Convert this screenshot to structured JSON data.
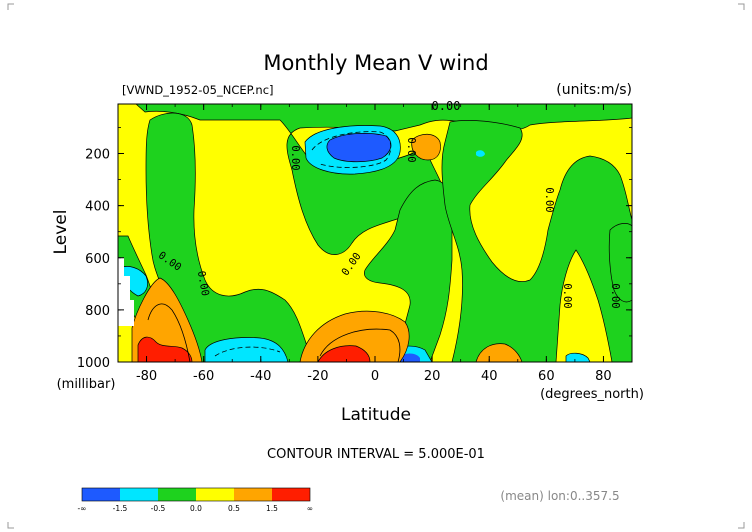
{
  "chart_data": {
    "type": "heatmap",
    "title": "Monthly Mean V wind",
    "source_label": "[VWND_1952-05_NCEP.nc]",
    "units_label": "(units:m/s)",
    "xlabel": "Latitude",
    "x_unit_label": "(degrees_north)",
    "ylabel": "Level",
    "y_unit_label": "(millibar)",
    "xlim": [
      -90,
      90
    ],
    "ylim": [
      1000,
      10
    ],
    "x_ticks": [
      -80,
      -60,
      -40,
      -20,
      0,
      20,
      40,
      60,
      80
    ],
    "x_tick_labels": [
      "-80",
      "-60",
      "-40",
      "-20",
      "0",
      "20",
      "40",
      "60",
      "80"
    ],
    "y_ticks": [
      200,
      400,
      600,
      800,
      1000
    ],
    "y_tick_labels": [
      "200",
      "400",
      "600",
      "800",
      "1000"
    ],
    "contour_interval_text": "CONTOUR INTERVAL = 5.000E-01",
    "footer_note": "(mean) lon:0..357.5",
    "contour_labels": [
      "0.00",
      "0.00",
      "0.00",
      "0.00",
      "0.00",
      "0.00",
      "0.00",
      "0.00",
      "0.00"
    ],
    "colorbar": {
      "colors": [
        "#1e5aff",
        "#00e6ff",
        "#1ed21e",
        "#ffff00",
        "#ffa500",
        "#ff1e00"
      ],
      "tick_labels": [
        "-∞",
        "-1.5",
        "-0.5",
        "0.0",
        "0.5",
        "1.5",
        "∞"
      ]
    },
    "regions": [
      {
        "class": "0.0 to 0.5",
        "color": "#ffff00",
        "desc": "background"
      },
      {
        "class": "-0.5 to 0.0",
        "color": "#1ed21e"
      },
      {
        "class": "-1.5 to -0.5",
        "color": "#00e6ff"
      },
      {
        "class": "< -1.5",
        "color": "#1e5aff"
      },
      {
        "class": "0.5 to 1.5",
        "color": "#ffa500"
      },
      {
        "class": "> 1.5",
        "color": "#ff1e00"
      }
    ]
  }
}
